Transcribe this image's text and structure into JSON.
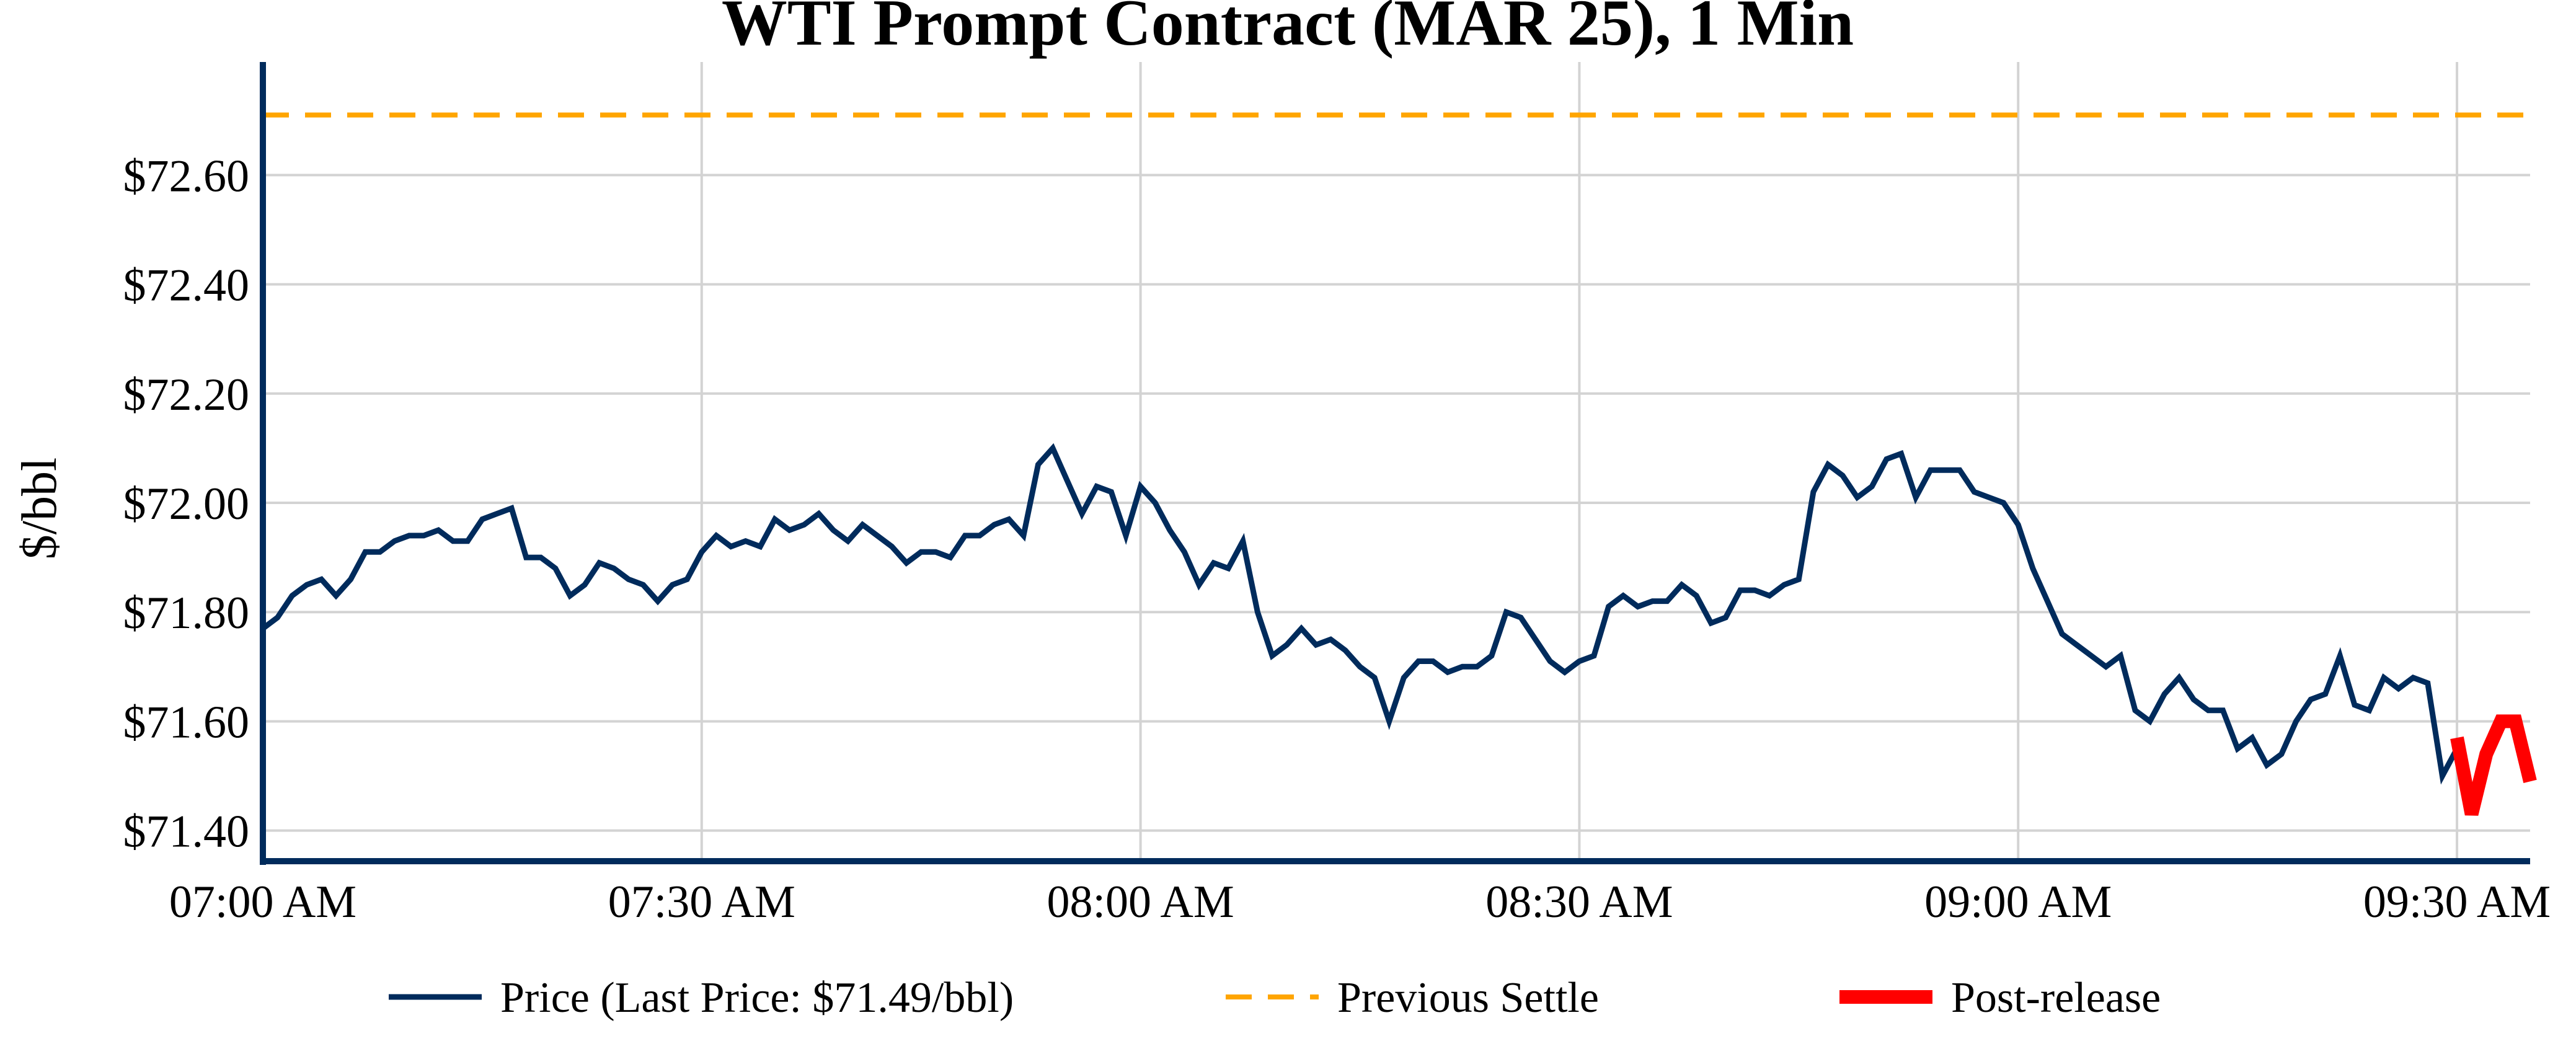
{
  "chart_data": {
    "type": "line",
    "title": "WTI Prompt Contract (MAR 25), 1 Min",
    "xlabel": "",
    "ylabel": "$/bbl",
    "x_start": "07:00 AM",
    "x_step_minutes": 1,
    "xlim_minutes": [
      0,
      155
    ],
    "ylim": [
      71.344,
      72.807
    ],
    "grid": true,
    "legend_position": "bottom",
    "x_ticks": [
      {
        "minute": 0,
        "label": "07:00 AM"
      },
      {
        "minute": 30,
        "label": "07:30 AM"
      },
      {
        "minute": 60,
        "label": "08:00 AM"
      },
      {
        "minute": 90,
        "label": "08:30 AM"
      },
      {
        "minute": 120,
        "label": "09:00 AM"
      },
      {
        "minute": 150,
        "label": "09:30 AM"
      }
    ],
    "y_ticks": [
      {
        "value": 71.4,
        "label": "$71.40"
      },
      {
        "value": 71.6,
        "label": "$71.60"
      },
      {
        "value": 71.8,
        "label": "$71.80"
      },
      {
        "value": 72.0,
        "label": "$72.00"
      },
      {
        "value": 72.2,
        "label": "$72.20"
      },
      {
        "value": 72.4,
        "label": "$72.40"
      },
      {
        "value": 72.6,
        "label": "$72.60"
      }
    ],
    "series": [
      {
        "name": "Price (Last Price: $71.49/bbl)",
        "color": "#002b5c",
        "style": "solid",
        "start_minute": 0,
        "values": [
          71.77,
          71.79,
          71.83,
          71.85,
          71.86,
          71.83,
          71.86,
          71.91,
          71.91,
          71.93,
          71.94,
          71.94,
          71.95,
          71.93,
          71.93,
          71.97,
          71.98,
          71.99,
          71.9,
          71.9,
          71.88,
          71.83,
          71.85,
          71.89,
          71.88,
          71.86,
          71.85,
          71.82,
          71.85,
          71.86,
          71.91,
          71.94,
          71.92,
          71.93,
          71.92,
          71.97,
          71.95,
          71.96,
          71.98,
          71.95,
          71.93,
          71.96,
          71.94,
          71.92,
          71.89,
          71.91,
          71.91,
          71.9,
          71.94,
          71.94,
          71.96,
          71.97,
          71.94,
          72.07,
          72.1,
          72.04,
          71.98,
          72.03,
          72.02,
          71.94,
          72.03,
          72.0,
          71.95,
          71.91,
          71.85,
          71.89,
          71.88,
          71.93,
          71.8,
          71.72,
          71.74,
          71.77,
          71.74,
          71.75,
          71.73,
          71.7,
          71.68,
          71.6,
          71.68,
          71.71,
          71.71,
          71.69,
          71.7,
          71.7,
          71.72,
          71.8,
          71.79,
          71.75,
          71.71,
          71.69,
          71.71,
          71.72,
          71.81,
          71.83,
          71.81,
          71.82,
          71.82,
          71.85,
          71.83,
          71.78,
          71.79,
          71.84,
          71.84,
          71.83,
          71.85,
          71.86,
          72.02,
          72.07,
          72.05,
          72.01,
          72.03,
          72.08,
          72.09,
          72.01,
          72.06,
          72.06,
          72.06,
          72.02,
          72.01,
          72.0,
          71.96,
          71.88,
          71.82,
          71.76,
          71.74,
          71.72,
          71.7,
          71.72,
          71.62,
          71.6,
          71.65,
          71.68,
          71.64,
          71.62,
          71.62,
          71.55,
          71.57,
          71.52,
          71.54,
          71.6,
          71.64,
          71.65,
          71.72,
          71.63,
          71.62,
          71.68,
          71.66,
          71.68,
          71.67,
          71.5,
          71.55
        ]
      },
      {
        "name": "Previous Settle",
        "color": "#ffa500",
        "style": "dashed",
        "constant": 72.71
      },
      {
        "name": "Post-release",
        "color": "#ff0000",
        "style": "solid-thick",
        "start_minute": 150,
        "values": [
          71.57,
          71.43,
          71.54,
          71.6,
          71.6,
          71.49
        ]
      }
    ]
  }
}
